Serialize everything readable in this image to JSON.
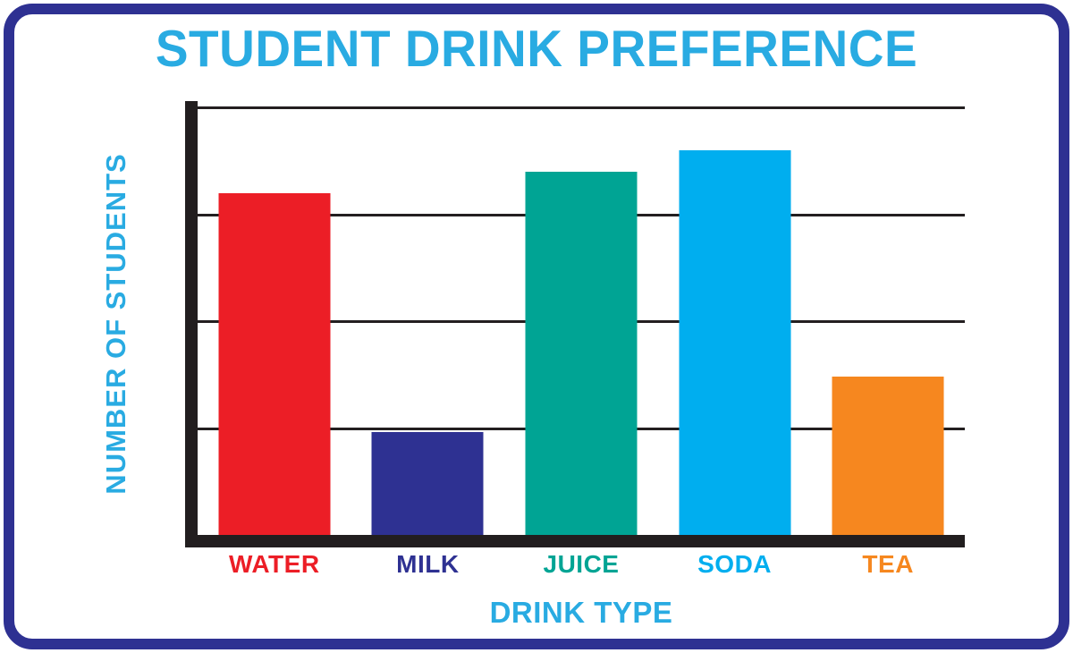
{
  "title": {
    "text": "STUDENT DRINK PREFERENCE",
    "color": "#29ABE2"
  },
  "axes": {
    "x_label": "DRINK TYPE",
    "y_label": "NUMBER OF STUDENTS",
    "label_color": "#29ABE2",
    "axis_color": "#221E1F",
    "grid_color": "#231F20"
  },
  "frame": {
    "border_color": "#2E3192",
    "background": "#FFFFFF"
  },
  "chart_data": {
    "type": "bar",
    "title": "STUDENT DRINK PREFERENCE",
    "xlabel": "DRINK TYPE",
    "ylabel": "NUMBER OF STUDENTS",
    "categories": [
      "WATER",
      "MILK",
      "JUICE",
      "SODA",
      "TEA"
    ],
    "values": [
      80,
      24,
      85,
      90,
      37
    ],
    "bar_colors": [
      "#EC1E26",
      "#2E3192",
      "#00A494",
      "#00AEEF",
      "#F6871F"
    ],
    "label_colors": [
      "#EC1E26",
      "#2E3192",
      "#00A494",
      "#00AEEF",
      "#F6871F"
    ],
    "ylim": [
      0,
      100
    ],
    "gridlines": [
      100,
      75,
      50,
      25
    ],
    "grid": true,
    "y_tick_labels_shown": false,
    "legend_position": "none"
  }
}
